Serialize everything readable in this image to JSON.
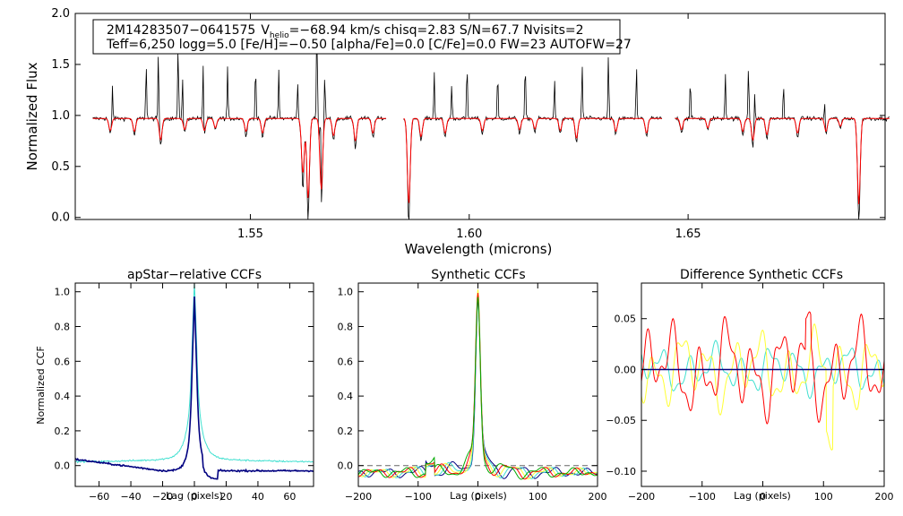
{
  "chart_data": [
    {
      "type": "line",
      "xlabel": "Wavelength (microns)",
      "ylabel": "Normalized Flux",
      "xlim": [
        1.51,
        1.695
      ],
      "ylim": [
        -0.02,
        2.0
      ],
      "xticks": [
        "1.55",
        "1.60",
        "1.65"
      ],
      "yticks": [
        "0.0",
        "0.5",
        "1.0",
        "1.5",
        "2.0"
      ],
      "info_box": {
        "line1_id": "2M14283507−0641575",
        "line1_v": "V",
        "line1_vsub": "helio",
        "line1_rest": "=−68.94 km/s  chisq=2.83  S/N=67.7  Nvisits=2",
        "line2": "Teff=6,250 logg=5.0 [Fe/H]=−0.50 [alpha/Fe]=0.0 [C/Fe]=0.0 FW=23 AUTOFW=27"
      },
      "chips": [
        [
          1.514,
          1.581
        ],
        [
          1.585,
          1.644
        ],
        [
          1.647,
          1.696
        ]
      ],
      "continuum": 0.97,
      "emission_spikes": [
        [
          1.5185,
          1.32
        ],
        [
          1.5262,
          1.52
        ],
        [
          1.529,
          1.7
        ],
        [
          1.5335,
          1.68
        ],
        [
          1.5345,
          1.4
        ],
        [
          1.5392,
          1.58
        ],
        [
          1.5448,
          1.48
        ],
        [
          1.5512,
          1.5
        ],
        [
          1.5565,
          1.45
        ],
        [
          1.5608,
          1.33
        ],
        [
          1.5652,
          2.0
        ],
        [
          1.566,
          1.7
        ],
        [
          1.567,
          1.45
        ],
        [
          1.592,
          1.42
        ],
        [
          1.596,
          1.3
        ],
        [
          1.5995,
          1.5
        ],
        [
          1.6065,
          1.42
        ],
        [
          1.6128,
          1.53
        ],
        [
          1.6195,
          1.38
        ],
        [
          1.6258,
          1.5
        ],
        [
          1.6318,
          1.58
        ],
        [
          1.6382,
          1.5
        ],
        [
          1.6462,
          1.3
        ],
        [
          1.6505,
          1.35
        ],
        [
          1.6585,
          1.42
        ],
        [
          1.6638,
          1.5
        ],
        [
          1.6652,
          1.3
        ],
        [
          1.6718,
          1.3
        ],
        [
          1.6812,
          1.2
        ]
      ],
      "absorption_lines": [
        [
          1.518,
          0.83
        ],
        [
          1.5235,
          0.82
        ],
        [
          1.5295,
          0.72
        ],
        [
          1.535,
          0.84
        ],
        [
          1.5395,
          0.83
        ],
        [
          1.542,
          0.86
        ],
        [
          1.549,
          0.82
        ],
        [
          1.5528,
          0.8
        ],
        [
          1.562,
          0.33
        ],
        [
          1.5632,
          0.05
        ],
        [
          1.5662,
          0.15
        ],
        [
          1.569,
          0.77
        ],
        [
          1.574,
          0.71
        ],
        [
          1.578,
          0.8
        ],
        [
          1.5862,
          -0.02
        ],
        [
          1.589,
          0.76
        ],
        [
          1.5945,
          0.8
        ],
        [
          1.603,
          0.83
        ],
        [
          1.6115,
          0.84
        ],
        [
          1.615,
          0.85
        ],
        [
          1.6208,
          0.83
        ],
        [
          1.6245,
          0.74
        ],
        [
          1.6335,
          0.82
        ],
        [
          1.6405,
          0.8
        ],
        [
          1.6485,
          0.84
        ],
        [
          1.6545,
          0.86
        ],
        [
          1.6625,
          0.82
        ],
        [
          1.6648,
          0.72
        ],
        [
          1.668,
          0.78
        ],
        [
          1.675,
          0.8
        ],
        [
          1.6815,
          0.82
        ],
        [
          1.6848,
          0.88
        ],
        [
          1.689,
          -0.02
        ]
      ],
      "series": [
        {
          "name": "",
          "color": "#000000"
        },
        {
          "name": "",
          "color": "#ff0000"
        }
      ]
    },
    {
      "type": "line",
      "title": "apStar−relative CCFs",
      "xlabel": "Lag (pixels)",
      "ylabel": "Normalized CCF",
      "xlim": [
        -75,
        75
      ],
      "ylim": [
        -0.12,
        1.05
      ],
      "xticks": [
        "−60",
        "−40",
        "−20",
        "0",
        "20",
        "40",
        "60"
      ],
      "yticks": [
        "0.0",
        "0.2",
        "0.4",
        "0.6",
        "0.8",
        "1.0"
      ],
      "series": [
        {
          "name": "",
          "color": "#40e0d0",
          "wing": 0.02,
          "width": 3.5
        },
        {
          "name": "",
          "color": "#000080",
          "wing": -0.03,
          "width": 2.5
        }
      ]
    },
    {
      "type": "line",
      "title": "Synthetic CCFs",
      "xlabel": "Lag (pixels)",
      "xlim": [
        -200,
        200
      ],
      "ylim": [
        -0.12,
        1.05
      ],
      "xticks": [
        "−200",
        "−100",
        "0",
        "100",
        "200"
      ],
      "yticks": [
        "0.0",
        "0.2",
        "0.4",
        "0.6",
        "0.8",
        "1.0"
      ],
      "series": [
        {
          "name": "",
          "color": "#000080"
        },
        {
          "name": "",
          "color": "#40e0d0"
        },
        {
          "name": "",
          "color": "#ffff33"
        },
        {
          "name": "",
          "color": "#ff0000"
        },
        {
          "name": "",
          "color": "#00aa00"
        }
      ]
    },
    {
      "type": "line",
      "title": "Difference Synthetic CCFs",
      "xlabel": "Lag (pixels)",
      "xlim": [
        -200,
        200
      ],
      "ylim": [
        -0.115,
        0.085
      ],
      "xticks": [
        "−200",
        "−100",
        "0",
        "100",
        "200"
      ],
      "yticks": [
        "−0.10",
        "−0.05",
        "0.00",
        "0.05"
      ],
      "series": [
        {
          "name": "",
          "color": "#40e0d0"
        },
        {
          "name": "",
          "color": "#ffff33"
        },
        {
          "name": "",
          "color": "#ff0000"
        },
        {
          "name": "",
          "color": "#000080"
        }
      ]
    }
  ]
}
